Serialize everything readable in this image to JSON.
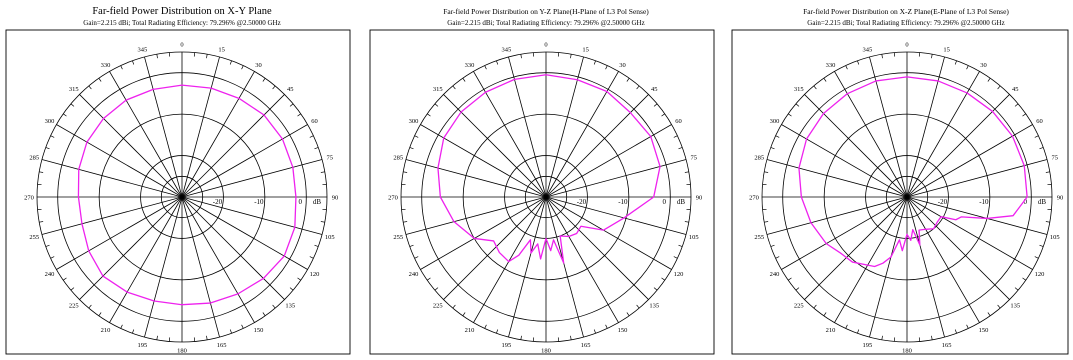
{
  "colors": {
    "pattern": "#ee22ee",
    "grid": "#000000",
    "background": "#ffffff"
  },
  "chart_data": [
    {
      "type": "polar",
      "title": "Far-field Power Distribution on X-Y Plane",
      "subtitle": "Gain=2.215 dBi; Total Radiating Efficiency: 79.296% @2.50000 GHz",
      "r_unit": "dB",
      "r_range": [
        -30,
        5
      ],
      "r_ticks": [
        -20,
        -10,
        0
      ],
      "angle_ticks": [
        0,
        15,
        30,
        45,
        60,
        75,
        90,
        105,
        120,
        135,
        150,
        165,
        180,
        195,
        210,
        225,
        240,
        255,
        270,
        285,
        300,
        315,
        330,
        345
      ],
      "series": [
        {
          "theta": [
            0,
            15,
            30,
            45,
            60,
            75,
            90,
            105,
            120,
            135,
            150,
            165,
            180,
            195,
            210,
            225,
            240,
            255,
            270,
            285,
            300,
            315,
            330,
            345,
            360
          ],
          "r": [
            -3.0,
            -2.8,
            -2.5,
            -2.0,
            -2.0,
            -2.3,
            -2.5,
            -1.8,
            -1.5,
            -2.2,
            -3.0,
            -3.5,
            -4.0,
            -4.0,
            -3.5,
            -3.0,
            -4.0,
            -5.0,
            -5.0,
            -4.2,
            -3.5,
            -3.2,
            -3.0,
            -3.1,
            -3.0
          ]
        }
      ]
    },
    {
      "type": "polar",
      "title": "Far-field Power Distribution on Y-Z Plane(H-Plane of L3 Pol Sense)",
      "subtitle": "Gain=2.215 dBi; Total Radiating Efficiency: 79.296% @2.50000 GHz",
      "r_unit": "dB",
      "r_range": [
        -30,
        5
      ],
      "r_ticks": [
        -20,
        -10,
        0
      ],
      "angle_ticks": [
        0,
        15,
        30,
        45,
        60,
        75,
        90,
        105,
        120,
        135,
        150,
        165,
        180,
        195,
        210,
        225,
        240,
        255,
        270,
        285,
        300,
        315,
        330,
        345
      ],
      "series": [
        {
          "theta": [
            0,
            15,
            30,
            45,
            60,
            75,
            90,
            105,
            120,
            130,
            140,
            150,
            160,
            165,
            170,
            175,
            180,
            185,
            190,
            195,
            200,
            205,
            210,
            220,
            230,
            240,
            255,
            270,
            285,
            300,
            315,
            330,
            345,
            360
          ],
          "r": [
            -0.5,
            -0.7,
            -0.6,
            -1.2,
            -0.8,
            -1.5,
            -4.0,
            -10.5,
            -14.0,
            -19.0,
            -18.5,
            -19.0,
            -20.0,
            -13.5,
            -19.5,
            -17.0,
            -20.0,
            -15.0,
            -18.5,
            -16.0,
            -19.0,
            -14.5,
            -12.0,
            -12.5,
            -13.5,
            -10.0,
            -7.0,
            -4.5,
            -3.0,
            -1.5,
            -1.0,
            -0.8,
            -0.6,
            -0.5
          ]
        }
      ]
    },
    {
      "type": "polar",
      "title": "Far-field Power Distribution on X-Z Plane(E-Plane of L3 Pol Sense)",
      "subtitle": "Gain=2.215 dBi; Total Radiating Efficiency: 79.296% @2.50000 GHz",
      "r_unit": "dB",
      "r_range": [
        -30,
        5
      ],
      "r_ticks": [
        -20,
        -10,
        0
      ],
      "angle_ticks": [
        0,
        15,
        30,
        45,
        60,
        75,
        90,
        105,
        120,
        135,
        150,
        165,
        180,
        195,
        210,
        225,
        240,
        255,
        270,
        285,
        300,
        315,
        330,
        345
      ],
      "series": [
        {
          "theta": [
            0,
            15,
            30,
            45,
            60,
            75,
            90,
            100,
            105,
            110,
            115,
            120,
            130,
            140,
            150,
            160,
            165,
            170,
            175,
            180,
            185,
            190,
            195,
            200,
            205,
            210,
            220,
            230,
            240,
            255,
            270,
            285,
            300,
            315,
            330,
            345,
            360
          ],
          "r": [
            -1.0,
            -1.0,
            -1.0,
            -0.8,
            -0.6,
            -0.7,
            -1.0,
            -4.0,
            -10.0,
            -16.0,
            -17.0,
            -20.5,
            -20.5,
            -20.0,
            -21.0,
            -21.5,
            -18.0,
            -22.0,
            -19.5,
            -21.0,
            -17.0,
            -19.5,
            -15.0,
            -13.0,
            -11.5,
            -11.0,
            -9.5,
            -9.0,
            -7.5,
            -6.0,
            -4.5,
            -3.0,
            -2.0,
            -1.5,
            -1.2,
            -1.0,
            -1.0
          ]
        }
      ]
    }
  ]
}
